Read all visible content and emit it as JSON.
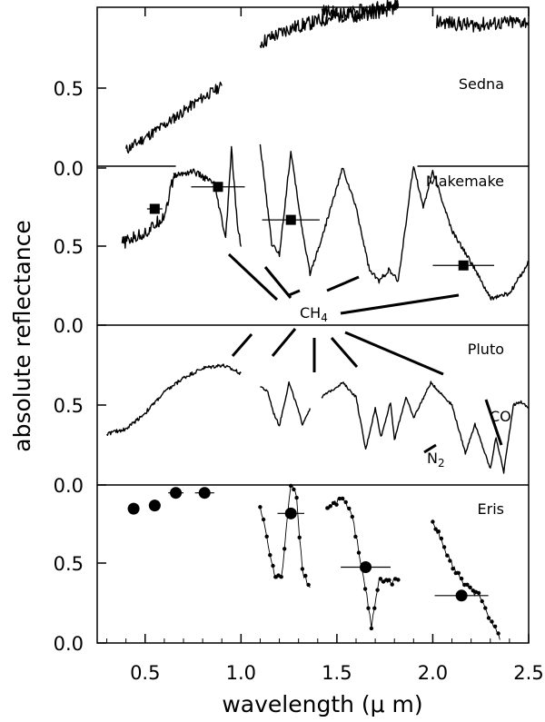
{
  "chart_data": {
    "type": "line",
    "xlabel": "wavelength (μ m)",
    "ylabel": "absolute reflectance",
    "xlim": [
      0.25,
      2.5
    ],
    "x_ticks": [
      0.5,
      1.0,
      1.5,
      2.0,
      2.5
    ],
    "x_tick_labels": [
      "0.5",
      "1.0",
      "1.5",
      "2.0",
      "2.5"
    ],
    "panel_tick_labels": [
      "0.0",
      "0.5"
    ],
    "grid": false,
    "annotations": {
      "ch4": "CH",
      "ch4_sub": "4",
      "n2": "N",
      "n2_sub": "2",
      "co": "CO"
    },
    "panels": [
      {
        "name": "Sedna",
        "ylim": [
          0,
          0.9
        ],
        "traces": [
          {
            "style": "noisy",
            "noise": 0.03,
            "points": [
              [
                0.4,
                0.1
              ],
              [
                0.6,
                0.24
              ],
              [
                0.78,
                0.38
              ],
              [
                0.9,
                0.46
              ]
            ]
          },
          {
            "style": "noisy",
            "noise": 0.04,
            "points": [
              [
                1.1,
                0.7
              ],
              [
                1.25,
                0.78
              ],
              [
                1.5,
                0.85
              ],
              [
                1.82,
                0.92
              ]
            ]
          },
          {
            "style": "noisy",
            "noise": 0.04,
            "points": [
              [
                1.42,
                0.88
              ],
              [
                1.6,
                0.85
              ],
              [
                1.82,
                0.9
              ]
            ]
          },
          {
            "style": "noisy",
            "noise": 0.04,
            "points": [
              [
                2.02,
                0.82
              ],
              [
                2.2,
                0.8
              ],
              [
                2.5,
                0.82
              ]
            ]
          }
        ],
        "markers": []
      },
      {
        "name": "Makemake",
        "ylim": [
          0,
          1.0
        ],
        "traces": [
          {
            "style": "noisy",
            "noise": 0.04,
            "points": [
              [
                0.38,
                0.52
              ],
              [
                0.52,
                0.6
              ],
              [
                0.6,
                0.7
              ],
              [
                0.65,
                0.95
              ]
            ]
          },
          {
            "style": "noisy",
            "noise": 0.02,
            "points": [
              [
                0.65,
                0.95
              ],
              [
                0.75,
                0.98
              ],
              [
                0.86,
                0.9
              ],
              [
                0.92,
                0.55
              ],
              [
                0.95,
                1.12
              ],
              [
                0.98,
                0.65
              ],
              [
                1.0,
                0.5
              ]
            ]
          },
          {
            "style": "noisy",
            "noise": 0.015,
            "points": [
              [
                1.1,
                1.15
              ],
              [
                1.16,
                0.52
              ],
              [
                1.2,
                0.45
              ],
              [
                1.26,
                1.1
              ],
              [
                1.33,
                0.52
              ],
              [
                1.36,
                0.33
              ],
              [
                1.42,
                0.55
              ],
              [
                1.53,
                1.0
              ],
              [
                1.6,
                0.75
              ],
              [
                1.67,
                0.35
              ],
              [
                1.72,
                0.28
              ],
              [
                1.77,
                0.35
              ],
              [
                1.82,
                0.28
              ],
              [
                1.9,
                1.02
              ],
              [
                1.95,
                0.75
              ],
              [
                2.0,
                0.98
              ],
              [
                2.1,
                0.6
              ],
              [
                2.2,
                0.4
              ],
              [
                2.3,
                0.17
              ],
              [
                2.4,
                0.2
              ],
              [
                2.5,
                0.4
              ]
            ]
          }
        ],
        "markers": [
          {
            "x": 0.55,
            "y": 0.74,
            "shape": "square",
            "xerr": 0.04
          },
          {
            "x": 0.88,
            "y": 0.88,
            "shape": "square",
            "xerr": 0.14
          },
          {
            "x": 1.26,
            "y": 0.67,
            "shape": "square",
            "xerr": 0.15
          },
          {
            "x": 2.16,
            "y": 0.38,
            "shape": "square",
            "xerr": 0.16
          }
        ]
      },
      {
        "name": "Pluto",
        "ylim": [
          0,
          1.0
        ],
        "traces": [
          {
            "style": "noisy",
            "noise": 0.012,
            "points": [
              [
                0.3,
                0.32
              ],
              [
                0.4,
                0.35
              ],
              [
                0.5,
                0.45
              ],
              [
                0.6,
                0.58
              ],
              [
                0.7,
                0.67
              ],
              [
                0.8,
                0.73
              ],
              [
                0.9,
                0.75
              ],
              [
                1.0,
                0.7
              ]
            ]
          },
          {
            "style": "noisy",
            "noise": 0.008,
            "points": [
              [
                1.1,
                0.62
              ],
              [
                1.14,
                0.58
              ],
              [
                1.17,
                0.45
              ],
              [
                1.2,
                0.37
              ],
              [
                1.25,
                0.64
              ],
              [
                1.29,
                0.5
              ],
              [
                1.32,
                0.38
              ],
              [
                1.36,
                0.48
              ]
            ]
          },
          {
            "style": "noisy",
            "noise": 0.008,
            "points": [
              [
                1.42,
                0.55
              ],
              [
                1.53,
                0.64
              ],
              [
                1.6,
                0.55
              ],
              [
                1.65,
                0.22
              ],
              [
                1.7,
                0.48
              ],
              [
                1.73,
                0.3
              ],
              [
                1.78,
                0.52
              ],
              [
                1.8,
                0.28
              ],
              [
                1.86,
                0.55
              ],
              [
                1.9,
                0.42
              ],
              [
                1.99,
                0.64
              ],
              [
                2.1,
                0.5
              ],
              [
                2.17,
                0.2
              ],
              [
                2.22,
                0.38
              ],
              [
                2.3,
                0.1
              ],
              [
                2.33,
                0.3
              ],
              [
                2.37,
                0.08
              ],
              [
                2.42,
                0.5
              ],
              [
                2.46,
                0.52
              ],
              [
                2.5,
                0.48
              ]
            ]
          }
        ],
        "markers": []
      },
      {
        "name": "Eris",
        "ylim": [
          0,
          1.0
        ],
        "traces": [
          {
            "style": "dotted",
            "noise": 0.02,
            "points": [
              [
                1.1,
                0.87
              ],
              [
                1.16,
                0.52
              ],
              [
                1.18,
                0.42
              ],
              [
                1.21,
                0.4
              ],
              [
                1.26,
                1.0
              ],
              [
                1.29,
                0.92
              ],
              [
                1.32,
                0.45
              ],
              [
                1.36,
                0.35
              ]
            ]
          },
          {
            "style": "dotted",
            "noise": 0.02,
            "points": [
              [
                1.45,
                0.85
              ],
              [
                1.53,
                0.92
              ],
              [
                1.58,
                0.8
              ],
              [
                1.64,
                0.42
              ],
              [
                1.68,
                0.1
              ],
              [
                1.72,
                0.4
              ],
              [
                1.78,
                0.38
              ],
              [
                1.82,
                0.4
              ]
            ]
          },
          {
            "style": "dotted",
            "noise": 0.02,
            "points": [
              [
                2.0,
                0.78
              ],
              [
                2.06,
                0.6
              ],
              [
                2.12,
                0.45
              ],
              [
                2.18,
                0.35
              ],
              [
                2.24,
                0.3
              ],
              [
                2.3,
                0.15
              ],
              [
                2.35,
                0.02
              ]
            ]
          }
        ],
        "markers": [
          {
            "x": 0.44,
            "y": 0.85,
            "shape": "circle",
            "xerr": 0.03
          },
          {
            "x": 0.55,
            "y": 0.87,
            "shape": "circle",
            "xerr": 0.03
          },
          {
            "x": 0.66,
            "y": 0.95,
            "shape": "circle",
            "xerr": 0.04
          },
          {
            "x": 0.81,
            "y": 0.95,
            "shape": "circle",
            "xerr": 0.05
          },
          {
            "x": 1.26,
            "y": 0.82,
            "shape": "circle",
            "xerr": 0.07
          },
          {
            "x": 1.65,
            "y": 0.48,
            "shape": "circle",
            "xerr": 0.13
          },
          {
            "x": 2.15,
            "y": 0.3,
            "shape": "circle",
            "xerr": 0.14
          }
        ]
      }
    ]
  }
}
